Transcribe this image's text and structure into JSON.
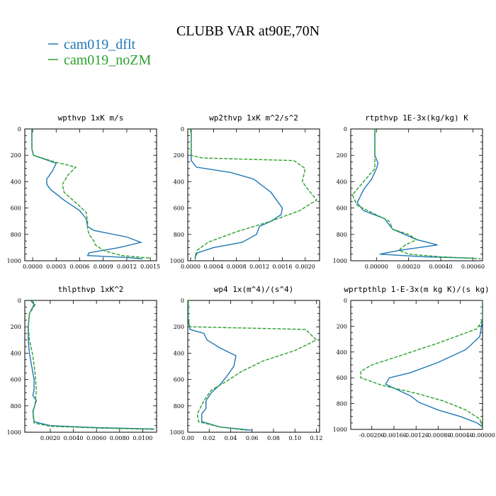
{
  "figure": {
    "title": "CLUBB VAR at90E,70N",
    "legend": [
      {
        "label": "cam019_dflt",
        "color": "#1f77b4"
      },
      {
        "label": "cam019_noZM",
        "color": "#2ca02c"
      }
    ]
  },
  "chart_data": [
    {
      "type": "line",
      "title": "wpthvp  1xK m/s",
      "xlim": [
        -0.0001,
        0.00158
      ],
      "ylim": [
        1000,
        0
      ],
      "xticks": [
        0,
        0.0003,
        0.0006,
        0.0009,
        0.0012,
        0.0015
      ],
      "xtick_labels": [
        "0.0000",
        "0.0003",
        "0.0006",
        "0.0009",
        "0.0012",
        "0.0015"
      ],
      "yticks": [
        0,
        200,
        400,
        600,
        800,
        1000
      ],
      "ytick_labels": [
        "0",
        "200",
        "400",
        "600",
        "800",
        "1000"
      ],
      "series": [
        {
          "name": "cam019_dflt",
          "color": "#1f77b4",
          "dash": "",
          "x": [
            -1e-05,
            -1e-05,
            1e-05,
            0.0003,
            0.00025,
            0.00018,
            0.00018,
            0.00023,
            0.0004,
            0.0006,
            0.00068,
            0.0007,
            0.00078,
            0.0012,
            0.00138,
            0.0011,
            0.00072,
            0.0007,
            0.0012,
            0.0014
          ],
          "y": [
            0,
            150,
            200,
            260,
            320,
            380,
            420,
            460,
            540,
            620,
            680,
            740,
            770,
            820,
            860,
            900,
            940,
            960,
            975,
            985
          ]
        },
        {
          "name": "cam019_noZM",
          "color": "#2ca02c",
          "dash": "5,2",
          "x": [
            -1e-05,
            -1e-05,
            1e-05,
            0.00028,
            0.00055,
            0.00045,
            0.00038,
            0.0004,
            0.00055,
            0.00068,
            0.0007,
            0.0007,
            0.00072,
            0.00078,
            0.0008,
            0.0009,
            0.001,
            0.00113,
            0.0013,
            0.0015
          ],
          "y": [
            0,
            150,
            200,
            250,
            290,
            350,
            420,
            480,
            560,
            630,
            700,
            760,
            800,
            850,
            880,
            920,
            940,
            960,
            970,
            980
          ]
        }
      ]
    },
    {
      "type": "line",
      "title": "wp2thvp  1xK m^2/s^2",
      "xlim": [
        -5e-05,
        0.00225
      ],
      "ylim": [
        1000,
        0
      ],
      "xticks": [
        0,
        0.0004,
        0.0008,
        0.0012,
        0.0016,
        0.002
      ],
      "xtick_labels": [
        "0.0000",
        "0.0004",
        "0.0008",
        "0.0012",
        "0.0016",
        "0.0020"
      ],
      "yticks": [
        0,
        200,
        400,
        600,
        800,
        1000
      ],
      "ytick_labels": [
        "0",
        "200",
        "400",
        "600",
        "800",
        "1000"
      ],
      "series": [
        {
          "name": "cam019_dflt",
          "color": "#1f77b4",
          "dash": "",
          "x": [
            1e-05,
            1e-05,
            1e-05,
            0.0001,
            0.0007,
            0.0011,
            0.0014,
            0.0016,
            0.00158,
            0.0014,
            0.0012,
            0.00115,
            0.0009,
            0.0004,
            0.00012,
            8e-05,
            8e-05
          ],
          "y": [
            0,
            150,
            240,
            290,
            330,
            380,
            480,
            600,
            650,
            700,
            740,
            800,
            860,
            900,
            940,
            970,
            990
          ]
        },
        {
          "name": "cam019_noZM",
          "color": "#2ca02c",
          "dash": "5,2",
          "x": [
            1e-05,
            1e-05,
            1e-05,
            0.0002,
            0.0018,
            0.002,
            0.00195,
            0.00205,
            0.0022,
            0.0019,
            0.0014,
            0.0008,
            0.0003,
            0.00012,
            8e-05,
            8e-05
          ],
          "y": [
            0,
            150,
            200,
            220,
            240,
            300,
            400,
            460,
            540,
            620,
            700,
            780,
            860,
            920,
            960,
            990
          ]
        }
      ]
    },
    {
      "type": "line",
      "title": "rtpthvp  1E-3x(kg/kg) K",
      "xlim": [
        -0.00016,
        0.00066
      ],
      "ylim": [
        1000,
        0
      ],
      "xticks": [
        0,
        0.0002,
        0.0004,
        0.0006
      ],
      "xtick_labels": [
        "0.00000",
        "0.00020",
        "0.00040",
        "0.00060"
      ],
      "yticks": [
        0,
        200,
        400,
        600,
        800,
        1000
      ],
      "ytick_labels": [
        "0",
        "200",
        "400",
        "600",
        "800",
        "1000"
      ],
      "series": [
        {
          "name": "cam019_dflt",
          "color": "#1f77b4",
          "dash": "",
          "x": [
            -1e-05,
            -1e-05,
            1e-05,
            0.0,
            -3e-05,
            -8e-05,
            -0.00012,
            -8e-05,
            5e-05,
            0.0001,
            0.00025,
            0.00038,
            0.00015,
            2e-05,
            0.0003,
            0.0006
          ],
          "y": [
            0,
            200,
            260,
            300,
            380,
            460,
            560,
            620,
            680,
            760,
            840,
            880,
            920,
            950,
            970,
            980
          ]
        },
        {
          "name": "cam019_noZM",
          "color": "#2ca02c",
          "dash": "5,2",
          "x": [
            -1e-05,
            -1e-05,
            -1e-05,
            -8e-05,
            -0.00015,
            -0.00012,
            -2e-05,
            8e-05,
            0.0001,
            0.0002,
            0.00025,
            0.00018,
            0.00014,
            0.0002,
            0.0004,
            0.00065
          ],
          "y": [
            0,
            200,
            300,
            400,
            500,
            580,
            640,
            700,
            760,
            800,
            840,
            880,
            920,
            950,
            970,
            985
          ]
        }
      ]
    },
    {
      "type": "line",
      "title": "thlpthvp  1xK^2",
      "xlim": [
        -0.0002,
        0.0112
      ],
      "ylim": [
        1000,
        0
      ],
      "xticks": [
        0.002,
        0.004,
        0.006,
        0.008,
        0.01
      ],
      "xtick_labels": [
        "0.0020",
        "0.0040",
        "0.0060",
        "0.0080",
        "0.0100"
      ],
      "yticks": [
        0,
        200,
        400,
        600,
        800,
        1000
      ],
      "ytick_labels": [
        "0",
        "200",
        "400",
        "600",
        "800",
        "1000"
      ],
      "series": [
        {
          "name": "cam019_dflt",
          "color": "#1f77b4",
          "dash": "",
          "x": [
            0.0003,
            0.0006,
            0.0002,
            0.0001,
            0.0001,
            0.0002,
            0.0004,
            0.0006,
            0.0006,
            0.0005,
            0.0008,
            0.0005,
            0.0006,
            0.002,
            0.006,
            0.011
          ],
          "y": [
            0,
            30,
            100,
            200,
            300,
            400,
            500,
            600,
            680,
            720,
            760,
            840,
            920,
            950,
            965,
            975
          ]
        },
        {
          "name": "cam019_noZM",
          "color": "#2ca02c",
          "dash": "5,2",
          "x": [
            0.0004,
            0.0007,
            0.0002,
            0.0001,
            0.0002,
            0.0005,
            0.0007,
            0.0008,
            0.0007,
            0.0005,
            0.0006,
            0.002,
            0.006,
            0.011
          ],
          "y": [
            0,
            30,
            100,
            200,
            300,
            420,
            560,
            680,
            780,
            860,
            930,
            955,
            968,
            978
          ]
        }
      ]
    },
    {
      "type": "line",
      "title": "wp4  1x(m^4)/(s^4)",
      "xlim": [
        0,
        0.123
      ],
      "ylim": [
        1000,
        0
      ],
      "xticks": [
        0,
        0.02,
        0.04,
        0.06,
        0.08,
        0.1,
        0.12
      ],
      "xtick_labels": [
        "0.00",
        "0.02",
        "0.04",
        "0.06",
        "0.08",
        "0.10",
        "0.12"
      ],
      "yticks": [
        0,
        200,
        400,
        600,
        800,
        1000
      ],
      "ytick_labels": [
        "0",
        "200",
        "400",
        "600",
        "800",
        "1000"
      ],
      "series": [
        {
          "name": "cam019_dflt",
          "color": "#1f77b4",
          "dash": "",
          "x": [
            0.0005,
            0.0005,
            0.002,
            0.015,
            0.018,
            0.03,
            0.045,
            0.043,
            0.036,
            0.03,
            0.022,
            0.017,
            0.017,
            0.013,
            0.013,
            0.03,
            0.06
          ],
          "y": [
            0,
            150,
            220,
            250,
            300,
            360,
            420,
            500,
            580,
            640,
            700,
            760,
            820,
            860,
            920,
            960,
            985
          ]
        },
        {
          "name": "cam019_noZM",
          "color": "#2ca02c",
          "dash": "5,2",
          "x": [
            0.0005,
            0.0005,
            0.002,
            0.11,
            0.12,
            0.1,
            0.07,
            0.05,
            0.035,
            0.022,
            0.015,
            0.009,
            0.01,
            0.03,
            0.055
          ],
          "y": [
            0,
            150,
            200,
            220,
            300,
            380,
            460,
            540,
            620,
            680,
            760,
            860,
            920,
            960,
            985
          ]
        }
      ]
    },
    {
      "type": "line",
      "title": "wprtpthlp  1-E-3x(m kg K)/(s kg)",
      "xlim": [
        -0.00238,
        0
      ],
      "ylim": [
        1000,
        0
      ],
      "xticks": [
        -0.002,
        -0.0016,
        -0.0012,
        -0.0008,
        -0.0004,
        0
      ],
      "xtick_labels": [
        "-0.00200",
        "-0.00160",
        "-0.00120",
        "-0.00080",
        "-0.00040",
        "-0.00000"
      ],
      "yticks": [
        0,
        200,
        400,
        600,
        800,
        1000
      ],
      "ytick_labels": [
        "0",
        "200",
        "400",
        "600",
        "800",
        "1000"
      ],
      "series": [
        {
          "name": "cam019_dflt",
          "color": "#1f77b4",
          "dash": "",
          "x": [
            0,
            0,
            -5e-05,
            -0.0003,
            -0.0008,
            -0.0013,
            -0.00168,
            -0.00175,
            -0.0016,
            -0.0013,
            -0.00115,
            -0.0008,
            -0.0004,
            -0.0001,
            0
          ],
          "y": [
            0,
            150,
            280,
            380,
            480,
            560,
            600,
            650,
            680,
            740,
            790,
            850,
            900,
            950,
            980
          ]
        },
        {
          "name": "cam019_noZM",
          "color": "#2ca02c",
          "dash": "5,2",
          "x": [
            0,
            0,
            -0.0001,
            -0.0008,
            -0.0015,
            -0.002,
            -0.0022,
            -0.0022,
            -0.0018,
            -0.0012,
            -0.0007,
            -0.0003,
            -5e-05,
            0
          ],
          "y": [
            0,
            150,
            220,
            330,
            430,
            500,
            550,
            600,
            660,
            720,
            780,
            850,
            920,
            980
          ]
        }
      ]
    }
  ]
}
